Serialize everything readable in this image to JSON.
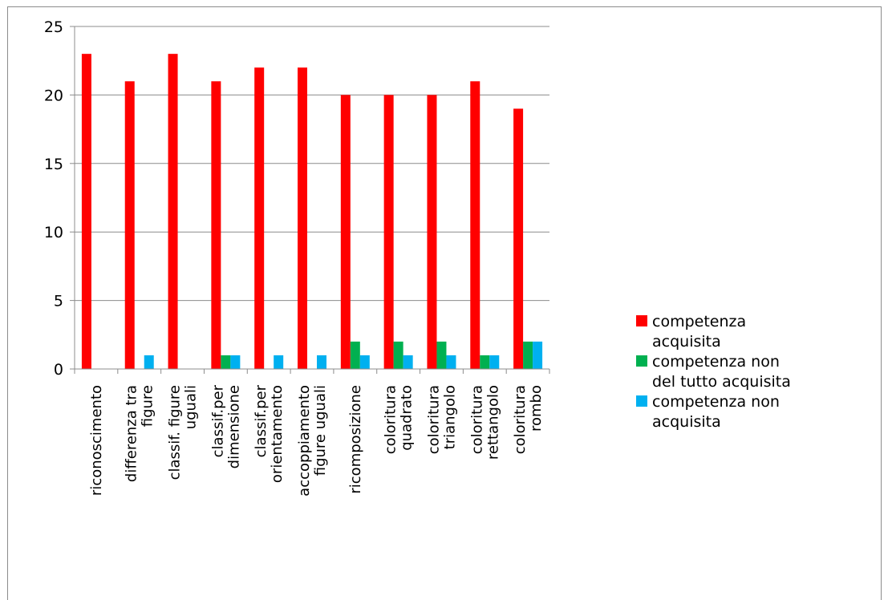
{
  "chart_data": {
    "type": "bar",
    "title": "",
    "xlabel": "",
    "ylabel": "",
    "ylim": [
      0,
      25
    ],
    "yticks": [
      0,
      5,
      10,
      15,
      20,
      25
    ],
    "grid": true,
    "legend_position": "right",
    "categories": [
      [
        "riconoscimento"
      ],
      [
        "differenza tra",
        "figure"
      ],
      [
        "classif. figure",
        "uguali"
      ],
      [
        "classif.per",
        "dimensione"
      ],
      [
        "classif.per",
        "orientamento"
      ],
      [
        "accoppiamento",
        "figure uguali"
      ],
      [
        "ricomposizione"
      ],
      [
        "coloritura",
        "quadrato"
      ],
      [
        "coloritura",
        "triangolo"
      ],
      [
        "coloritura",
        "rettangolo"
      ],
      [
        "coloritura",
        "rombo"
      ]
    ],
    "series": [
      {
        "name": [
          "competenza",
          "acquisita"
        ],
        "color": "#ff0000",
        "values": [
          23,
          21,
          23,
          21,
          22,
          22,
          20,
          20,
          20,
          21,
          19
        ]
      },
      {
        "name": [
          "competenza non",
          "del tutto acquisita"
        ],
        "color": "#00b050",
        "values": [
          0,
          0,
          0,
          1,
          0,
          0,
          2,
          2,
          2,
          1,
          2
        ]
      },
      {
        "name": [
          "competenza non",
          "acquisita"
        ],
        "color": "#00b0f0",
        "values": [
          0,
          1,
          0,
          1,
          1,
          1,
          1,
          1,
          1,
          1,
          2
        ]
      }
    ]
  }
}
